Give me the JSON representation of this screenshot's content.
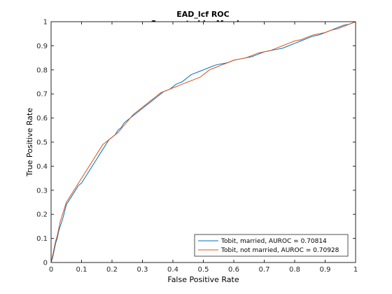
{
  "chart_data": {
    "type": "line",
    "title": "EAD_lcf ROC",
    "subtitle": "Segmented by Marriage",
    "xlabel": "False Positive Rate",
    "ylabel": "True Positive Rate",
    "xlim": [
      0,
      1
    ],
    "ylim": [
      0,
      1
    ],
    "xticks": [
      0,
      0.1,
      0.2,
      0.3,
      0.4,
      0.5,
      0.6,
      0.7,
      0.8,
      0.9,
      1
    ],
    "yticks": [
      0,
      0.1,
      0.2,
      0.3,
      0.4,
      0.5,
      0.6,
      0.7,
      0.8,
      0.9,
      1
    ],
    "xtick_labels": [
      "0",
      "0.1",
      "0.2",
      "0.3",
      "0.4",
      "0.5",
      "0.6",
      "0.7",
      "0.8",
      "0.9",
      "1"
    ],
    "ytick_labels": [
      "0",
      "0.1",
      "0.2",
      "0.3",
      "0.4",
      "0.5",
      "0.6",
      "0.7",
      "0.8",
      "0.9",
      "1"
    ],
    "grid": false,
    "legend_position": "bottom-right",
    "series": [
      {
        "name": "Tobit, married, AUROC = 0.70814",
        "color": "#0072BD",
        "x": [
          0,
          0.005,
          0.01,
          0.015,
          0.02,
          0.025,
          0.03,
          0.04,
          0.05,
          0.06,
          0.07,
          0.08,
          0.09,
          0.1,
          0.11,
          0.12,
          0.13,
          0.14,
          0.15,
          0.16,
          0.17,
          0.18,
          0.19,
          0.2,
          0.21,
          0.22,
          0.23,
          0.24,
          0.25,
          0.26,
          0.27,
          0.28,
          0.29,
          0.3,
          0.31,
          0.32,
          0.33,
          0.34,
          0.35,
          0.36,
          0.37,
          0.38,
          0.39,
          0.4,
          0.41,
          0.42,
          0.43,
          0.44,
          0.45,
          0.46,
          0.47,
          0.48,
          0.49,
          0.5,
          0.52,
          0.54,
          0.56,
          0.58,
          0.6,
          0.62,
          0.64,
          0.66,
          0.68,
          0.7,
          0.72,
          0.74,
          0.76,
          0.78,
          0.8,
          0.82,
          0.84,
          0.86,
          0.88,
          0.9,
          0.92,
          0.94,
          0.96,
          0.98,
          1
        ],
        "y": [
          0,
          0.02,
          0.05,
          0.08,
          0.1,
          0.13,
          0.15,
          0.19,
          0.24,
          0.26,
          0.28,
          0.3,
          0.32,
          0.33,
          0.35,
          0.37,
          0.39,
          0.41,
          0.43,
          0.45,
          0.47,
          0.49,
          0.51,
          0.52,
          0.53,
          0.55,
          0.56,
          0.58,
          0.59,
          0.6,
          0.61,
          0.62,
          0.63,
          0.64,
          0.65,
          0.66,
          0.67,
          0.68,
          0.69,
          0.7,
          0.71,
          0.715,
          0.72,
          0.73,
          0.74,
          0.745,
          0.75,
          0.76,
          0.77,
          0.78,
          0.785,
          0.79,
          0.795,
          0.8,
          0.81,
          0.82,
          0.825,
          0.83,
          0.84,
          0.845,
          0.85,
          0.855,
          0.865,
          0.875,
          0.88,
          0.885,
          0.89,
          0.9,
          0.91,
          0.92,
          0.93,
          0.94,
          0.945,
          0.955,
          0.965,
          0.975,
          0.985,
          0.99,
          1
        ]
      },
      {
        "name": "Tobit, not married, AUROC = 0.70928",
        "color": "#D95319",
        "x": [
          0,
          0.005,
          0.01,
          0.015,
          0.02,
          0.025,
          0.03,
          0.04,
          0.05,
          0.06,
          0.07,
          0.08,
          0.09,
          0.1,
          0.11,
          0.12,
          0.13,
          0.14,
          0.15,
          0.16,
          0.17,
          0.18,
          0.19,
          0.2,
          0.21,
          0.22,
          0.23,
          0.24,
          0.25,
          0.26,
          0.27,
          0.28,
          0.29,
          0.3,
          0.31,
          0.32,
          0.33,
          0.34,
          0.35,
          0.36,
          0.37,
          0.38,
          0.39,
          0.4,
          0.41,
          0.42,
          0.43,
          0.44,
          0.45,
          0.46,
          0.47,
          0.48,
          0.49,
          0.5,
          0.52,
          0.54,
          0.56,
          0.58,
          0.6,
          0.62,
          0.64,
          0.66,
          0.68,
          0.7,
          0.72,
          0.74,
          0.76,
          0.78,
          0.8,
          0.82,
          0.84,
          0.86,
          0.88,
          0.9,
          0.92,
          0.94,
          0.96,
          0.98,
          1
        ],
        "y": [
          0,
          0.03,
          0.06,
          0.09,
          0.11,
          0.14,
          0.17,
          0.21,
          0.25,
          0.27,
          0.29,
          0.31,
          0.33,
          0.35,
          0.37,
          0.39,
          0.41,
          0.43,
          0.45,
          0.47,
          0.49,
          0.5,
          0.51,
          0.52,
          0.53,
          0.54,
          0.555,
          0.57,
          0.585,
          0.6,
          0.615,
          0.625,
          0.635,
          0.645,
          0.655,
          0.665,
          0.675,
          0.685,
          0.695,
          0.705,
          0.71,
          0.715,
          0.72,
          0.725,
          0.73,
          0.735,
          0.74,
          0.745,
          0.75,
          0.755,
          0.76,
          0.765,
          0.77,
          0.78,
          0.8,
          0.81,
          0.82,
          0.83,
          0.84,
          0.845,
          0.85,
          0.86,
          0.87,
          0.875,
          0.88,
          0.89,
          0.9,
          0.91,
          0.92,
          0.925,
          0.935,
          0.945,
          0.95,
          0.955,
          0.965,
          0.97,
          0.98,
          0.99,
          1
        ]
      }
    ]
  }
}
